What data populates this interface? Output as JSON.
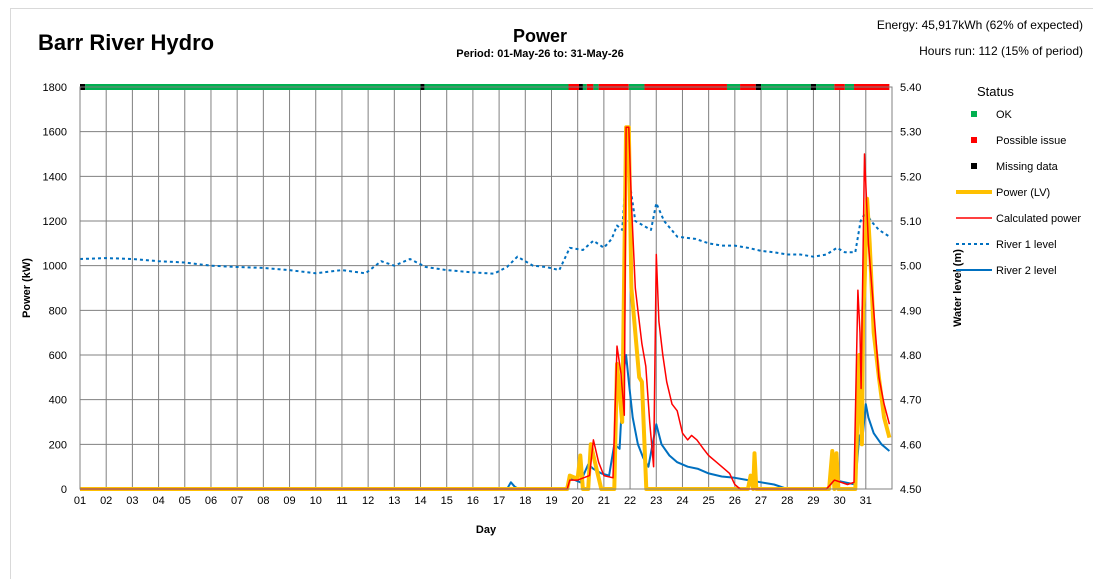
{
  "header": {
    "site": "Barr River Hydro",
    "title": "Power",
    "period": "Period: 01-May-26 to: 31-May-26",
    "energy": "Energy: 45,917kWh (62% of expected)",
    "hours": "Hours run: 112 (15% of period)"
  },
  "chart_data": {
    "type": "line",
    "title": "Power",
    "subtitle": "Period: 01-May-26 to: 31-May-26",
    "xlabel": "Day",
    "ylabel": "Power (kW)",
    "y2label": "Water level (m)",
    "xlim": [
      1,
      32
    ],
    "ylim": [
      0,
      1800
    ],
    "y2lim": [
      4.5,
      5.4
    ],
    "grid": true,
    "x_ticks": [
      "01",
      "02",
      "03",
      "04",
      "05",
      "06",
      "07",
      "08",
      "09",
      "10",
      "11",
      "12",
      "13",
      "14",
      "15",
      "16",
      "17",
      "18",
      "19",
      "20",
      "21",
      "22",
      "23",
      "24",
      "25",
      "26",
      "27",
      "28",
      "29",
      "30",
      "31"
    ],
    "y_ticks": [
      "0",
      "200",
      "400",
      "600",
      "800",
      "1000",
      "1200",
      "1400",
      "1600",
      "1800"
    ],
    "y2_ticks": [
      "4.50",
      "4.60",
      "4.70",
      "4.80",
      "4.90",
      "5.00",
      "5.10",
      "5.20",
      "5.30",
      "5.40"
    ],
    "legend_title": "Status",
    "legend_position": "right",
    "status_strip": {
      "colors": {
        "ok": "#00b050",
        "issue": "#ff0000",
        "missing": "#000000"
      },
      "segments": [
        {
          "from": 1.0,
          "to": 1.2,
          "status": "missing"
        },
        {
          "from": 1.2,
          "to": 14.0,
          "status": "ok"
        },
        {
          "from": 14.0,
          "to": 14.15,
          "status": "missing"
        },
        {
          "from": 14.15,
          "to": 19.65,
          "status": "ok"
        },
        {
          "from": 19.65,
          "to": 20.05,
          "status": "issue"
        },
        {
          "from": 20.05,
          "to": 20.2,
          "status": "missing"
        },
        {
          "from": 20.2,
          "to": 20.35,
          "status": "ok"
        },
        {
          "from": 20.35,
          "to": 20.6,
          "status": "issue"
        },
        {
          "from": 20.6,
          "to": 20.8,
          "status": "ok"
        },
        {
          "from": 20.8,
          "to": 21.95,
          "status": "issue"
        },
        {
          "from": 21.95,
          "to": 22.55,
          "status": "ok"
        },
        {
          "from": 22.55,
          "to": 25.7,
          "status": "issue"
        },
        {
          "from": 25.7,
          "to": 26.2,
          "status": "ok"
        },
        {
          "from": 26.2,
          "to": 26.8,
          "status": "issue"
        },
        {
          "from": 26.8,
          "to": 27.0,
          "status": "missing"
        },
        {
          "from": 27.0,
          "to": 28.9,
          "status": "ok"
        },
        {
          "from": 28.9,
          "to": 29.1,
          "status": "missing"
        },
        {
          "from": 29.1,
          "to": 29.8,
          "status": "ok"
        },
        {
          "from": 29.8,
          "to": 30.2,
          "status": "issue"
        },
        {
          "from": 30.2,
          "to": 30.55,
          "status": "ok"
        },
        {
          "from": 30.55,
          "to": 31.9,
          "status": "issue"
        }
      ]
    },
    "series": [
      {
        "name": "Power (LV)",
        "axis": "left",
        "color": "#ffc000",
        "width": 4,
        "dash": "",
        "points": [
          [
            1,
            0
          ],
          [
            19.6,
            0
          ],
          [
            19.7,
            60
          ],
          [
            19.9,
            50
          ],
          [
            20.0,
            50
          ],
          [
            20.1,
            150
          ],
          [
            20.2,
            0
          ],
          [
            20.4,
            0
          ],
          [
            20.5,
            200
          ],
          [
            20.7,
            100
          ],
          [
            20.9,
            0
          ],
          [
            21.4,
            0
          ],
          [
            21.5,
            560
          ],
          [
            21.7,
            300
          ],
          [
            21.85,
            1620
          ],
          [
            21.95,
            1620
          ],
          [
            22.05,
            900
          ],
          [
            22.2,
            700
          ],
          [
            22.35,
            500
          ],
          [
            22.45,
            480
          ],
          [
            22.55,
            200
          ],
          [
            22.62,
            0
          ],
          [
            26.5,
            0
          ],
          [
            26.6,
            60
          ],
          [
            26.7,
            0
          ],
          [
            26.75,
            160
          ],
          [
            26.82,
            0
          ],
          [
            29.6,
            0
          ],
          [
            29.72,
            170
          ],
          [
            29.8,
            0
          ],
          [
            29.88,
            160
          ],
          [
            29.95,
            0
          ],
          [
            30.6,
            0
          ],
          [
            30.75,
            600
          ],
          [
            30.85,
            200
          ],
          [
            30.9,
            800
          ],
          [
            30.95,
            900
          ],
          [
            31.05,
            1300
          ],
          [
            31.15,
            1100
          ],
          [
            31.3,
            700
          ],
          [
            31.5,
            500
          ],
          [
            31.7,
            320
          ],
          [
            31.9,
            230
          ]
        ]
      },
      {
        "name": "Calculated power",
        "axis": "left",
        "color": "#ff0000",
        "width": 1.5,
        "dash": "",
        "points": [
          [
            1,
            0
          ],
          [
            19.6,
            0
          ],
          [
            19.7,
            40
          ],
          [
            20.0,
            40
          ],
          [
            20.45,
            60
          ],
          [
            20.6,
            220
          ],
          [
            20.8,
            120
          ],
          [
            21.0,
            60
          ],
          [
            21.35,
            50
          ],
          [
            21.5,
            640
          ],
          [
            21.65,
            520
          ],
          [
            21.78,
            330
          ],
          [
            21.85,
            1620
          ],
          [
            21.95,
            1620
          ],
          [
            22.05,
            1280
          ],
          [
            22.2,
            900
          ],
          [
            22.3,
            800
          ],
          [
            22.45,
            650
          ],
          [
            22.6,
            550
          ],
          [
            22.75,
            300
          ],
          [
            22.9,
            100
          ],
          [
            23.0,
            1050
          ],
          [
            23.1,
            750
          ],
          [
            23.25,
            600
          ],
          [
            23.4,
            480
          ],
          [
            23.6,
            380
          ],
          [
            23.8,
            350
          ],
          [
            24.0,
            250
          ],
          [
            24.2,
            220
          ],
          [
            24.35,
            240
          ],
          [
            24.55,
            220
          ],
          [
            24.8,
            180
          ],
          [
            25.0,
            150
          ],
          [
            25.3,
            120
          ],
          [
            25.6,
            90
          ],
          [
            25.8,
            70
          ],
          [
            26.0,
            20
          ],
          [
            26.2,
            0
          ],
          [
            29.5,
            0
          ],
          [
            29.8,
            40
          ],
          [
            30.3,
            20
          ],
          [
            30.55,
            30
          ],
          [
            30.7,
            890
          ],
          [
            30.78,
            700
          ],
          [
            30.82,
            450
          ],
          [
            30.95,
            1500
          ],
          [
            31.1,
            1100
          ],
          [
            31.3,
            800
          ],
          [
            31.5,
            500
          ],
          [
            31.7,
            380
          ],
          [
            31.9,
            290
          ]
        ]
      },
      {
        "name": "River 1 level",
        "axis": "right",
        "color": "#0070c0",
        "width": 2,
        "dash": "3,3",
        "points": [
          [
            1,
            5.015
          ],
          [
            2,
            5.017
          ],
          [
            3,
            5.015
          ],
          [
            4,
            5.01
          ],
          [
            5,
            5.007
          ],
          [
            6,
            5.0
          ],
          [
            7,
            4.997
          ],
          [
            8,
            4.995
          ],
          [
            9,
            4.99
          ],
          [
            10,
            4.983
          ],
          [
            11,
            4.99
          ],
          [
            11.9,
            4.983
          ],
          [
            12.5,
            5.01
          ],
          [
            13.0,
            5.0
          ],
          [
            13.6,
            5.015
          ],
          [
            14.2,
            4.997
          ],
          [
            15,
            4.99
          ],
          [
            16,
            4.985
          ],
          [
            16.8,
            4.982
          ],
          [
            17.3,
            4.997
          ],
          [
            17.7,
            5.02
          ],
          [
            18.3,
            5.0
          ],
          [
            18.8,
            4.997
          ],
          [
            19.3,
            4.99
          ],
          [
            19.7,
            5.04
          ],
          [
            20.2,
            5.035
          ],
          [
            20.6,
            5.056
          ],
          [
            21.0,
            5.04
          ],
          [
            21.3,
            5.06
          ],
          [
            21.5,
            5.09
          ],
          [
            21.7,
            5.08
          ],
          [
            21.9,
            5.25
          ],
          [
            22.0,
            5.18
          ],
          [
            22.2,
            5.1
          ],
          [
            22.5,
            5.09
          ],
          [
            22.8,
            5.08
          ],
          [
            23.0,
            5.14
          ],
          [
            23.3,
            5.1
          ],
          [
            23.8,
            5.065
          ],
          [
            24.5,
            5.06
          ],
          [
            25.0,
            5.05
          ],
          [
            25.5,
            5.045
          ],
          [
            26.0,
            5.045
          ],
          [
            26.5,
            5.04
          ],
          [
            27.0,
            5.033
          ],
          [
            27.5,
            5.03
          ],
          [
            28.0,
            5.025
          ],
          [
            28.5,
            5.025
          ],
          [
            29.0,
            5.02
          ],
          [
            29.5,
            5.025
          ],
          [
            29.9,
            5.04
          ],
          [
            30.2,
            5.03
          ],
          [
            30.6,
            5.03
          ],
          [
            30.8,
            5.1
          ],
          [
            31.0,
            5.12
          ],
          [
            31.2,
            5.1
          ],
          [
            31.5,
            5.08
          ],
          [
            31.9,
            5.065
          ]
        ]
      },
      {
        "name": "River 2 level",
        "axis": "right",
        "color": "#0070c0",
        "width": 2,
        "dash": "",
        "points": [
          [
            1,
            4.5
          ],
          [
            17.3,
            4.5
          ],
          [
            17.45,
            4.515
          ],
          [
            17.6,
            4.505
          ],
          [
            17.75,
            4.5
          ],
          [
            19.55,
            4.5
          ],
          [
            19.7,
            4.525
          ],
          [
            20.1,
            4.515
          ],
          [
            20.4,
            4.555
          ],
          [
            20.6,
            4.545
          ],
          [
            20.9,
            4.535
          ],
          [
            21.2,
            4.53
          ],
          [
            21.4,
            4.6
          ],
          [
            21.6,
            4.59
          ],
          [
            21.75,
            4.76
          ],
          [
            21.85,
            4.8
          ],
          [
            21.95,
            4.74
          ],
          [
            22.1,
            4.66
          ],
          [
            22.3,
            4.6
          ],
          [
            22.5,
            4.57
          ],
          [
            22.7,
            4.55
          ],
          [
            23.0,
            4.645
          ],
          [
            23.2,
            4.6
          ],
          [
            23.5,
            4.575
          ],
          [
            23.8,
            4.56
          ],
          [
            24.2,
            4.55
          ],
          [
            24.6,
            4.545
          ],
          [
            25.0,
            4.535
          ],
          [
            25.5,
            4.528
          ],
          [
            26.0,
            4.525
          ],
          [
            26.5,
            4.52
          ],
          [
            27.0,
            4.515
          ],
          [
            27.5,
            4.51
          ],
          [
            28.0,
            4.5
          ],
          [
            29.5,
            4.5
          ],
          [
            29.8,
            4.52
          ],
          [
            30.2,
            4.515
          ],
          [
            30.6,
            4.51
          ],
          [
            30.75,
            4.62
          ],
          [
            30.85,
            4.6
          ],
          [
            31.0,
            4.69
          ],
          [
            31.1,
            4.66
          ],
          [
            31.3,
            4.625
          ],
          [
            31.6,
            4.6
          ],
          [
            31.9,
            4.585
          ]
        ]
      }
    ],
    "legend": [
      {
        "label": "OK",
        "kind": "square",
        "color": "#00b050"
      },
      {
        "label": "Possible issue",
        "kind": "square",
        "color": "#ff0000"
      },
      {
        "label": "Missing data",
        "kind": "square",
        "color": "#000000"
      },
      {
        "label": "Power (LV)",
        "kind": "line",
        "color": "#ffc000",
        "width": 4,
        "dash": ""
      },
      {
        "label": "Calculated power",
        "kind": "line",
        "color": "#ff0000",
        "width": 1.5,
        "dash": ""
      },
      {
        "label": "River 1 level",
        "kind": "line",
        "color": "#0070c0",
        "width": 2,
        "dash": "3,3"
      },
      {
        "label": "River 2 level",
        "kind": "line",
        "color": "#0070c0",
        "width": 2,
        "dash": ""
      }
    ]
  }
}
